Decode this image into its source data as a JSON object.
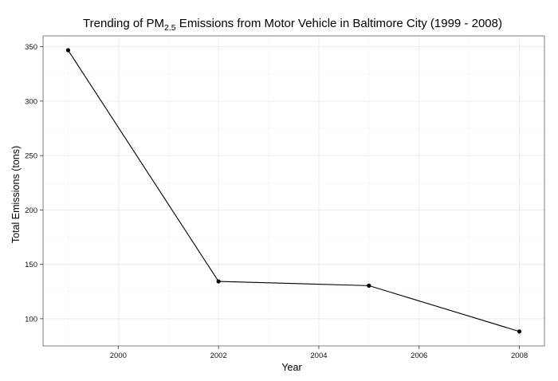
{
  "chart_data": {
    "type": "line",
    "title": {
      "prefix": "Trending of PM",
      "subscript": "2.5",
      "suffix": " Emissions from Motor Vehicle in Baltimore City (1999 - 2008)"
    },
    "xlabel": "Year",
    "ylabel": "Total Emissions (tons)",
    "x": [
      1999,
      2002,
      2005,
      2008
    ],
    "series": [
      {
        "values": [
          346.8,
          134.3,
          130.4,
          88.3
        ]
      }
    ],
    "xlim": [
      1998.5,
      2008.5
    ],
    "ylim": [
      75,
      360
    ],
    "xticks": [
      2000,
      2002,
      2004,
      2006,
      2008
    ],
    "xtick_labels": [
      "2000",
      "2002",
      "2004",
      "2006",
      "2008"
    ],
    "yticks": [
      100,
      150,
      200,
      250,
      300,
      350
    ],
    "ytick_labels": [
      "100",
      "150",
      "200",
      "250",
      "300",
      "350"
    ],
    "grid": true,
    "markers": true,
    "colors": {
      "line": "#000000",
      "grid": "#ebebeb",
      "border": "#7f7f7f"
    }
  }
}
